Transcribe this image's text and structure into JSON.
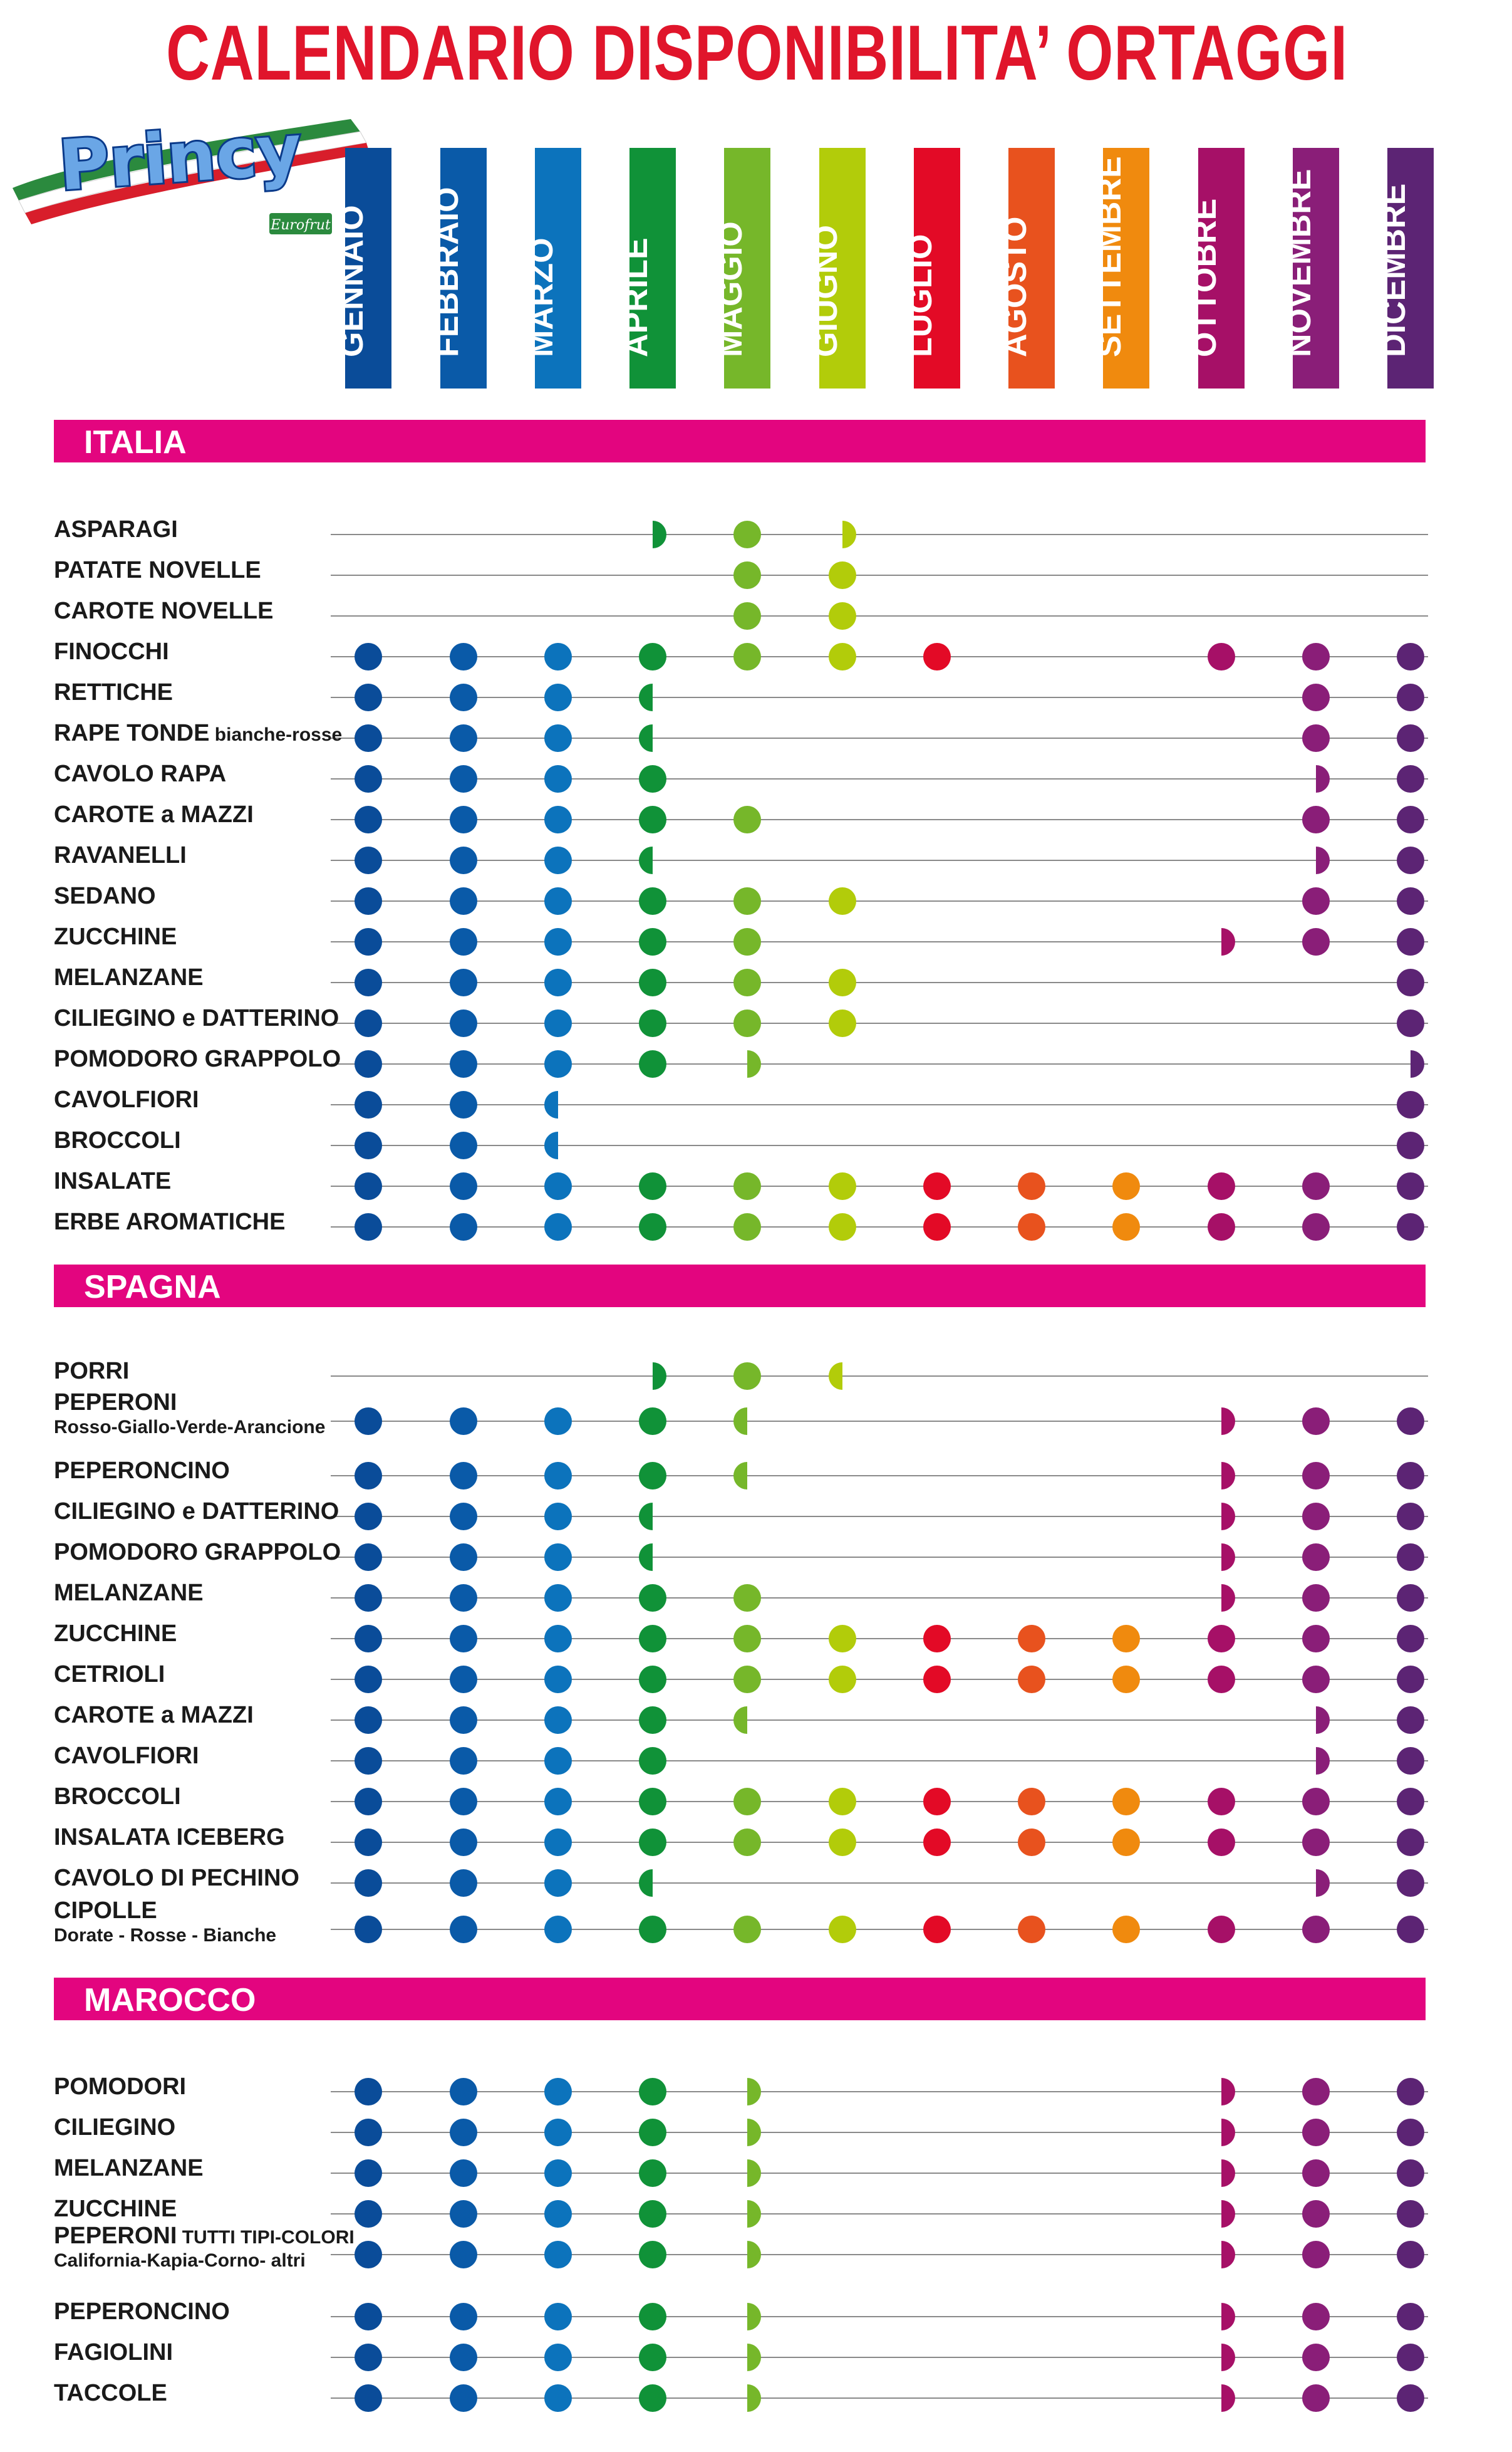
{
  "title": "CALENDARIO DISPONIBILITA’ ORTAGGI",
  "brand": {
    "name": "Princy",
    "sub": "Eurofrut"
  },
  "months": [
    {
      "label": "GENNAIO",
      "color": "#0a4c99"
    },
    {
      "label": "FEBBRAIO",
      "color": "#0a5aa8"
    },
    {
      "label": "MARZO",
      "color": "#0c73bc"
    },
    {
      "label": "APRILE",
      "color": "#109238"
    },
    {
      "label": "MAGGIO",
      "color": "#76b72a"
    },
    {
      "label": "GIUGNO",
      "color": "#b2cc0a"
    },
    {
      "label": "LUGLIO",
      "color": "#e30a26"
    },
    {
      "label": "AGOSTO",
      "color": "#e8521e"
    },
    {
      "label": "SETTEMBRE",
      "color": "#f08a0e"
    },
    {
      "label": "OTTOBRE",
      "color": "#a61067"
    },
    {
      "label": "NOVEMBRE",
      "color": "#8a1e78"
    },
    {
      "label": "DICEMBRE",
      "color": "#5c2474"
    }
  ],
  "legend_note": "Each cell: F = full availability, R = first half (right half-dot drawn), L = partial (left half-dot drawn), empty = not available",
  "sections": [
    {
      "name": "ITALIA",
      "rows": [
        {
          "label": "ASPARAGI",
          "cells": [
            "",
            "",
            "",
            "R",
            "F",
            "R",
            "",
            "",
            "",
            "",
            "",
            ""
          ]
        },
        {
          "label": "PATATE NOVELLE",
          "cells": [
            "",
            "",
            "",
            "",
            "F",
            "F",
            "",
            "",
            "",
            "",
            "",
            ""
          ]
        },
        {
          "label": "CAROTE NOVELLE",
          "cells": [
            "",
            "",
            "",
            "",
            "F",
            "F",
            "",
            "",
            "",
            "",
            "",
            ""
          ]
        },
        {
          "label": "FINOCCHI",
          "cells": [
            "F",
            "F",
            "F",
            "F",
            "F",
            "F",
            "F",
            "",
            "",
            "F",
            "F",
            "F"
          ]
        },
        {
          "label": "RETTICHE",
          "cells": [
            "F",
            "F",
            "F",
            "L",
            "",
            "",
            "",
            "",
            "",
            "",
            "F",
            "F"
          ]
        },
        {
          "label": "RAPE TONDE",
          "small": "bianche-rosse",
          "cells": [
            "F",
            "F",
            "F",
            "L",
            "",
            "",
            "",
            "",
            "",
            "",
            "F",
            "F"
          ]
        },
        {
          "label": "CAVOLO RAPA",
          "cells": [
            "F",
            "F",
            "F",
            "F",
            "",
            "",
            "",
            "",
            "",
            "",
            "R",
            "F"
          ]
        },
        {
          "label": "CAROTE a MAZZI",
          "cells": [
            "F",
            "F",
            "F",
            "F",
            "F",
            "",
            "",
            "",
            "",
            "",
            "F",
            "F"
          ]
        },
        {
          "label": "RAVANELLI",
          "cells": [
            "F",
            "F",
            "F",
            "L",
            "",
            "",
            "",
            "",
            "",
            "",
            "R",
            "F"
          ]
        },
        {
          "label": "SEDANO",
          "cells": [
            "F",
            "F",
            "F",
            "F",
            "F",
            "F",
            "",
            "",
            "",
            "",
            "F",
            "F"
          ]
        },
        {
          "label": "ZUCCHINE",
          "cells": [
            "F",
            "F",
            "F",
            "F",
            "F",
            "",
            "",
            "",
            "",
            "R",
            "F",
            "F"
          ]
        },
        {
          "label": "MELANZANE",
          "cells": [
            "F",
            "F",
            "F",
            "F",
            "F",
            "F",
            "",
            "",
            "",
            "",
            "",
            "F"
          ]
        },
        {
          "label": "CILIEGINO e DATTERINO",
          "cells": [
            "F",
            "F",
            "F",
            "F",
            "F",
            "F",
            "",
            "",
            "",
            "",
            "",
            "F"
          ]
        },
        {
          "label": "POMODORO GRAPPOLO",
          "cells": [
            "F",
            "F",
            "F",
            "F",
            "R",
            "",
            "",
            "",
            "",
            "",
            "",
            "R"
          ]
        },
        {
          "label": "CAVOLFIORI",
          "cells": [
            "F",
            "F",
            "L",
            "",
            "",
            "",
            "",
            "",
            "",
            "",
            "",
            "F"
          ]
        },
        {
          "label": "BROCCOLI",
          "cells": [
            "F",
            "F",
            "L",
            "",
            "",
            "",
            "",
            "",
            "",
            "",
            "",
            "F"
          ]
        },
        {
          "label": "INSALATE",
          "cells": [
            "F",
            "F",
            "F",
            "F",
            "F",
            "F",
            "F",
            "F",
            "F",
            "F",
            "F",
            "F"
          ]
        },
        {
          "label": "ERBE AROMATICHE",
          "cells": [
            "F",
            "F",
            "F",
            "F",
            "F",
            "F",
            "F",
            "F",
            "F",
            "F",
            "F",
            "F"
          ]
        }
      ]
    },
    {
      "name": "SPAGNA",
      "rows": [
        {
          "label": "PORRI",
          "cells": [
            "",
            "",
            "",
            "R",
            "F",
            "L",
            "",
            "",
            "",
            "",
            "",
            ""
          ]
        },
        {
          "label": "PEPERONI",
          "sub": "Rosso-Giallo-Verde-Arancione",
          "cells": [
            "F",
            "F",
            "F",
            "F",
            "L",
            "",
            "",
            "",
            "",
            "R",
            "F",
            "F"
          ]
        },
        {
          "label": "PEPERONCINO",
          "cells": [
            "F",
            "F",
            "F",
            "F",
            "L",
            "",
            "",
            "",
            "",
            "R",
            "F",
            "F"
          ]
        },
        {
          "label": "CILIEGINO e DATTERINO",
          "cells": [
            "F",
            "F",
            "F",
            "L",
            "",
            "",
            "",
            "",
            "",
            "R",
            "F",
            "F"
          ]
        },
        {
          "label": "POMODORO GRAPPOLO",
          "cells": [
            "F",
            "F",
            "F",
            "L",
            "",
            "",
            "",
            "",
            "",
            "R",
            "F",
            "F"
          ]
        },
        {
          "label": "MELANZANE",
          "cells": [
            "F",
            "F",
            "F",
            "F",
            "F",
            "",
            "",
            "",
            "",
            "R",
            "F",
            "F"
          ]
        },
        {
          "label": "ZUCCHINE",
          "cells": [
            "F",
            "F",
            "F",
            "F",
            "F",
            "F",
            "F",
            "F",
            "F",
            "F",
            "F",
            "F"
          ]
        },
        {
          "label": "CETRIOLI",
          "cells": [
            "F",
            "F",
            "F",
            "F",
            "F",
            "F",
            "F",
            "F",
            "F",
            "F",
            "F",
            "F"
          ]
        },
        {
          "label": "CAROTE a MAZZI",
          "cells": [
            "F",
            "F",
            "F",
            "F",
            "L",
            "",
            "",
            "",
            "",
            "",
            "R",
            "F"
          ]
        },
        {
          "label": "CAVOLFIORI",
          "cells": [
            "F",
            "F",
            "F",
            "F",
            "",
            "",
            "",
            "",
            "",
            "",
            "R",
            "F"
          ]
        },
        {
          "label": "BROCCOLI",
          "cells": [
            "F",
            "F",
            "F",
            "F",
            "F",
            "F",
            "F",
            "F",
            "F",
            "F",
            "F",
            "F"
          ]
        },
        {
          "label": "INSALATA ICEBERG",
          "cells": [
            "F",
            "F",
            "F",
            "F",
            "F",
            "F",
            "F",
            "F",
            "F",
            "F",
            "F",
            "F"
          ]
        },
        {
          "label": "CAVOLO DI PECHINO",
          "cells": [
            "F",
            "F",
            "F",
            "L",
            "",
            "",
            "",
            "",
            "",
            "",
            "R",
            "F"
          ]
        },
        {
          "label": "CIPOLLE",
          "sub": "Dorate - Rosse - Bianche",
          "cells": [
            "F",
            "F",
            "F",
            "F",
            "F",
            "F",
            "F",
            "F",
            "F",
            "F",
            "F",
            "F"
          ]
        }
      ]
    },
    {
      "name": "MAROCCO",
      "rows": [
        {
          "label": "POMODORI",
          "cells": [
            "F",
            "F",
            "F",
            "F",
            "R",
            "",
            "",
            "",
            "",
            "R",
            "F",
            "F"
          ]
        },
        {
          "label": "CILIEGINO",
          "cells": [
            "F",
            "F",
            "F",
            "F",
            "R",
            "",
            "",
            "",
            "",
            "R",
            "F",
            "F"
          ]
        },
        {
          "label": "MELANZANE",
          "cells": [
            "F",
            "F",
            "F",
            "F",
            "R",
            "",
            "",
            "",
            "",
            "R",
            "F",
            "F"
          ]
        },
        {
          "label": "ZUCCHINE",
          "cells": [
            "F",
            "F",
            "F",
            "F",
            "R",
            "",
            "",
            "",
            "",
            "R",
            "F",
            "F"
          ]
        },
        {
          "label": "PEPERONI",
          "small": "TUTTI TIPI-COLORI",
          "sub": "California-Kapia-Corno- altri",
          "cells": [
            "F",
            "F",
            "F",
            "F",
            "R",
            "",
            "",
            "",
            "",
            "R",
            "F",
            "F"
          ]
        },
        {
          "label": "PEPERONCINO",
          "cells": [
            "F",
            "F",
            "F",
            "F",
            "R",
            "",
            "",
            "",
            "",
            "R",
            "F",
            "F"
          ]
        },
        {
          "label": "FAGIOLINI",
          "cells": [
            "F",
            "F",
            "F",
            "F",
            "R",
            "",
            "",
            "",
            "",
            "R",
            "F",
            "F"
          ]
        },
        {
          "label": "TACCOLE",
          "cells": [
            "F",
            "F",
            "F",
            "F",
            "R",
            "",
            "",
            "",
            "",
            "R",
            "F",
            "F"
          ]
        }
      ]
    }
  ]
}
